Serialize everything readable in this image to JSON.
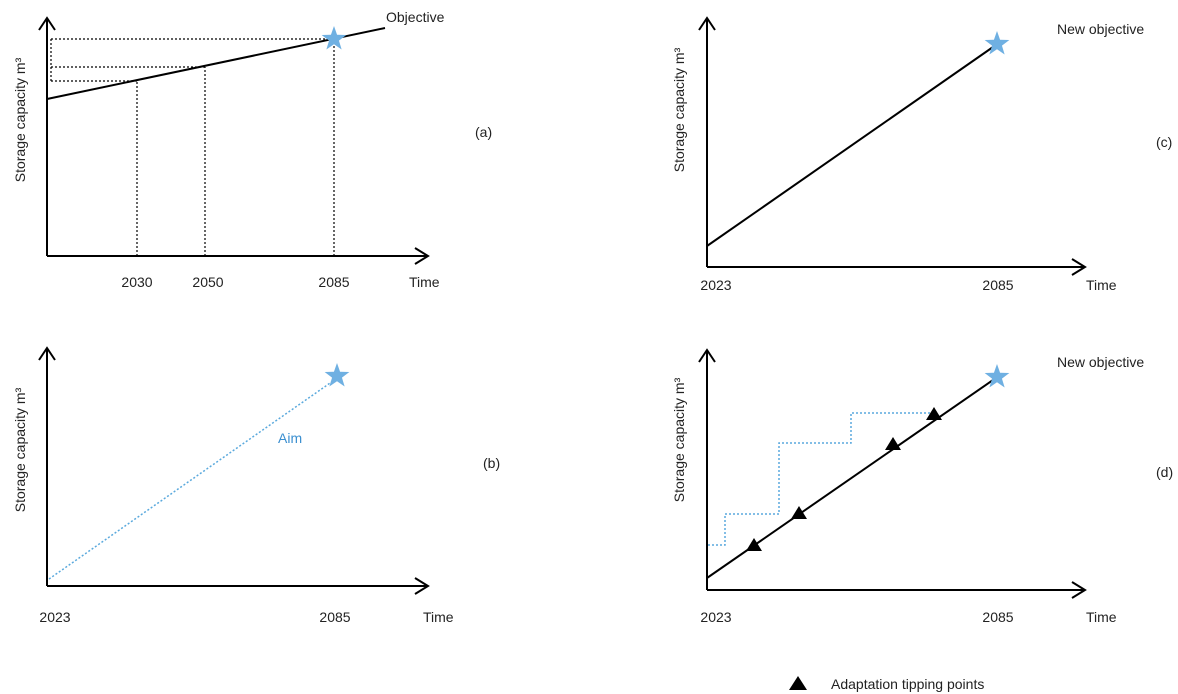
{
  "panels": {
    "a": {
      "label": "(a)",
      "ylabel": "Storage capacity m³",
      "xlabel": "Time",
      "line_label": "Objective",
      "ticks": [
        "2030",
        "2050",
        "2085"
      ]
    },
    "b": {
      "label": "(b)",
      "ylabel": "Storage capacity m³",
      "xlabel": "Time",
      "line_label": "Aim",
      "ticks": [
        "2023",
        "2085"
      ]
    },
    "c": {
      "label": "(c)",
      "ylabel": "Storage capacity m³",
      "xlabel": "Time",
      "line_label": "New objective",
      "ticks": [
        "2023",
        "2085"
      ]
    },
    "d": {
      "label": "(d)",
      "ylabel": "Storage capacity m³",
      "xlabel": "Time",
      "line_label": "New objective",
      "ticks": [
        "2023",
        "2085"
      ]
    }
  },
  "legend": {
    "symbol": "black-triangle",
    "label": "Adaptation tipping points"
  },
  "colors": {
    "star": "#6fb0e2",
    "aim": "#5aa9dd",
    "aim_label": "#3b8fd0",
    "line": "#000000"
  }
}
